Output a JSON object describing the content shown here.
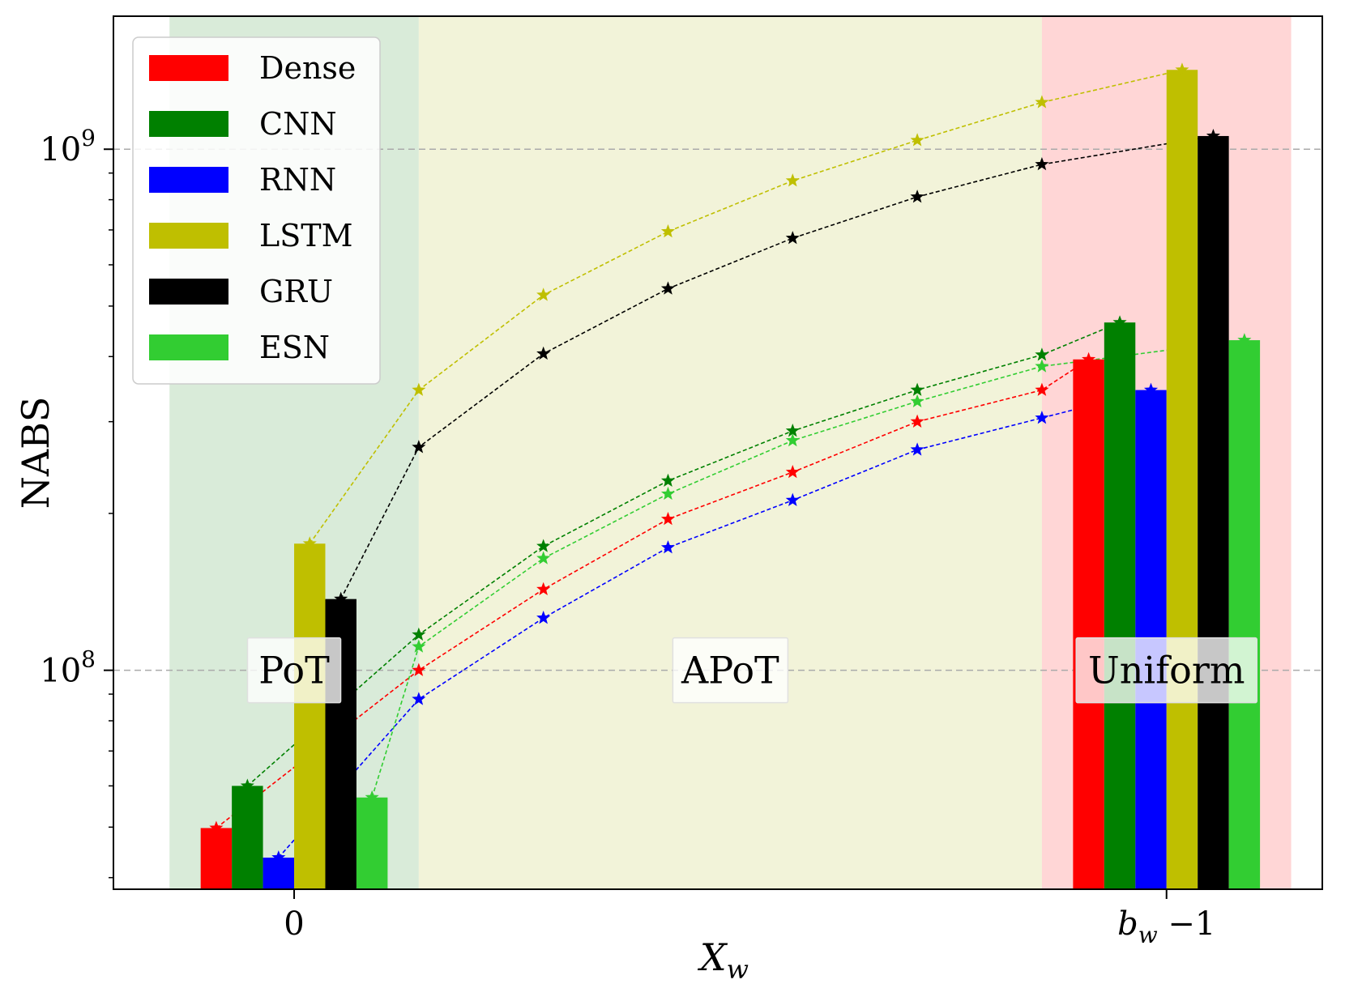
{
  "chart_data": {
    "type": "bar",
    "ylabel": "NABS",
    "xlabel_main": "X",
    "xlabel_sub": "w",
    "yscale": "log",
    "ylim": [
      38000000,
      1800000000
    ],
    "yticks": [
      {
        "value": 100000000,
        "base": "10",
        "exp": "8"
      },
      {
        "value": 1000000000,
        "base": "10",
        "exp": "9"
      }
    ],
    "xticks": [
      {
        "pos": 0,
        "label": "0"
      },
      {
        "pos": 7,
        "label_main": "b",
        "label_sub": "w",
        "label_rest": "−1"
      }
    ],
    "xlim": [
      -1.45,
      8.25
    ],
    "grid": "horizontal dashed",
    "legend_position": "top-left",
    "regions": [
      {
        "label": "PoT",
        "from": -1,
        "to": 1,
        "color": "#d9ebd9",
        "label_pos": 0
      },
      {
        "label": "APoT",
        "from": 1,
        "to": 6,
        "color": "#f2f3d9",
        "label_pos": 3.5
      },
      {
        "label": "Uniform",
        "from": 6,
        "to": 8,
        "color": "#ffd6d6",
        "label_pos": 7
      }
    ],
    "bar_width": 0.25,
    "series": [
      {
        "name": "Dense",
        "color": "#ff0000",
        "offset": -0.625,
        "bar_left": 49800000,
        "bar_right": 395000000,
        "line": [
          [
            1,
            100000000
          ],
          [
            2,
            143000000
          ],
          [
            3,
            195000000
          ],
          [
            4,
            240000000
          ],
          [
            5,
            300000000
          ],
          [
            6,
            345000000
          ]
        ]
      },
      {
        "name": "CNN",
        "color": "#008000",
        "offset": -0.375,
        "bar_left": 60000000,
        "bar_right": 465000000,
        "line": [
          [
            1,
            117000000
          ],
          [
            2,
            173000000
          ],
          [
            3,
            231000000
          ],
          [
            4,
            288000000
          ],
          [
            5,
            345000000
          ],
          [
            6,
            403000000
          ]
        ]
      },
      {
        "name": "RNN",
        "color": "#0000ff",
        "offset": -0.125,
        "bar_left": 43700000,
        "bar_right": 345000000,
        "line": [
          [
            1,
            88000000
          ],
          [
            2,
            126000000
          ],
          [
            3,
            172000000
          ],
          [
            4,
            212000000
          ],
          [
            5,
            265000000
          ],
          [
            6,
            305000000
          ]
        ]
      },
      {
        "name": "LSTM",
        "color": "#bfbf00",
        "offset": 0.125,
        "bar_left": 175000000,
        "bar_right": 1420000000,
        "line": [
          [
            1,
            345000000
          ],
          [
            2,
            525000000
          ],
          [
            3,
            695000000
          ],
          [
            4,
            870000000
          ],
          [
            5,
            1040000000
          ],
          [
            6,
            1230000000
          ]
        ]
      },
      {
        "name": "GRU",
        "color": "#000000",
        "offset": 0.375,
        "bar_left": 137000000,
        "bar_right": 1060000000,
        "line": [
          [
            1,
            268000000
          ],
          [
            2,
            405000000
          ],
          [
            3,
            540000000
          ],
          [
            4,
            675000000
          ],
          [
            5,
            810000000
          ],
          [
            6,
            935000000
          ]
        ]
      },
      {
        "name": "ESN",
        "color": "#32cd32",
        "offset": 0.625,
        "bar_left": 57000000,
        "bar_right": 430000000,
        "line": [
          [
            1,
            111000000
          ],
          [
            2,
            164000000
          ],
          [
            3,
            218000000
          ],
          [
            4,
            276000000
          ],
          [
            5,
            328000000
          ],
          [
            6,
            383000000
          ]
        ]
      }
    ]
  }
}
